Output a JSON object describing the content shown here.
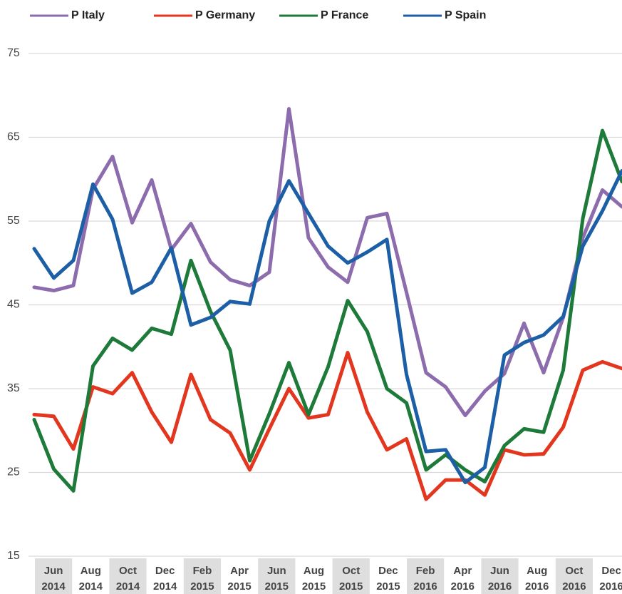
{
  "chart_data": {
    "type": "line",
    "x_labels": [
      "Jun 2014",
      "Aug 2014",
      "Oct 2014",
      "Dec 2014",
      "Feb 2015",
      "Apr 2015",
      "Jun 2015",
      "Aug 2015",
      "Oct 2015",
      "Dec 2015",
      "Feb 2016",
      "Apr 2016",
      "Jun 2016",
      "Aug 2016",
      "Oct 2016",
      "Dec 2016"
    ],
    "series": [
      {
        "name": "P Italy",
        "color": "#8d6cae",
        "values": [
          47.1,
          46.7,
          47.3,
          58.8,
          62.7,
          54.8,
          59.9,
          51.6,
          54.7,
          50.1,
          48.0,
          47.3,
          48.9,
          68.4,
          53.0,
          49.5,
          47.7,
          55.4,
          55.9,
          46.5,
          36.9,
          35.2,
          31.8,
          34.7,
          36.8,
          42.8,
          36.9,
          43.5,
          53.0,
          58.7,
          56.7
        ]
      },
      {
        "name": "P Germany",
        "color": "#e2361f",
        "values": [
          31.9,
          31.7,
          27.8,
          35.2,
          34.4,
          36.9,
          32.2,
          28.6,
          36.7,
          31.3,
          29.7,
          25.3,
          30.2,
          35.0,
          31.5,
          31.9,
          39.3,
          32.2,
          27.7,
          29.0,
          21.8,
          24.1,
          24.1,
          22.3,
          27.7,
          27.1,
          27.2,
          30.4,
          37.2,
          38.2,
          37.4
        ]
      },
      {
        "name": "P France",
        "color": "#1d7a39",
        "values": [
          31.3,
          25.4,
          22.8,
          37.7,
          41.0,
          39.6,
          42.2,
          41.5,
          50.3,
          44.2,
          39.6,
          26.4,
          32.0,
          38.1,
          31.9,
          37.6,
          45.5,
          41.8,
          35.0,
          33.3,
          25.3,
          27.1,
          25.3,
          23.9,
          28.2,
          30.2,
          29.8,
          37.2,
          55.3,
          65.8,
          59.7
        ]
      },
      {
        "name": "P Spain",
        "color": "#1c5fa6",
        "values": [
          51.7,
          48.2,
          50.3,
          59.4,
          55.2,
          46.4,
          47.7,
          51.8,
          42.6,
          43.5,
          45.4,
          45.1,
          55.0,
          59.8,
          55.9,
          52.0,
          50.0,
          51.3,
          52.8,
          36.7,
          27.5,
          27.7,
          23.8,
          25.6,
          39.0,
          40.5,
          41.4,
          43.6,
          52.0,
          56.2,
          61.0
        ]
      }
    ],
    "ylim": [
      15,
      75
    ],
    "yticks": [
      15,
      25,
      35,
      45,
      55,
      65,
      75
    ],
    "grid": true
  }
}
